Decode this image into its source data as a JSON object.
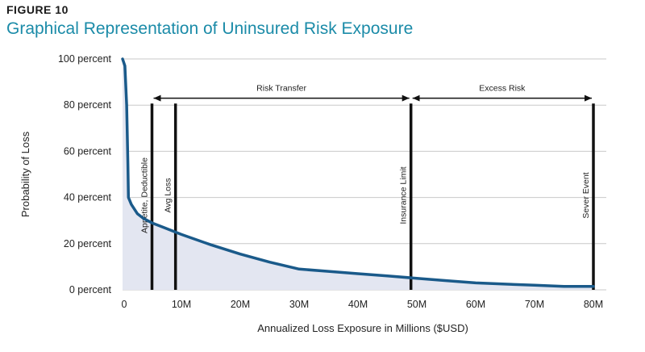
{
  "figure": {
    "label": "FIGURE 10",
    "title": "Graphical Representation of Uninsured Risk Exposure"
  },
  "colors": {
    "curve": "#1a5a8a",
    "fill": "#e3e6f1",
    "marker": "#111111",
    "title": "#1b8ba8"
  },
  "chart_data": {
    "type": "area",
    "xlabel": "Annualized Loss Exposure in Millions ($USD)",
    "ylabel": "Probability of Loss",
    "xlim": [
      0,
      80
    ],
    "ylim": [
      0,
      100
    ],
    "grid": true,
    "x_ticks": [
      {
        "value": 0,
        "label": "0"
      },
      {
        "value": 10,
        "label": "10M"
      },
      {
        "value": 20,
        "label": "20M"
      },
      {
        "value": 30,
        "label": "30M"
      },
      {
        "value": 40,
        "label": "40M"
      },
      {
        "value": 50,
        "label": "50M"
      },
      {
        "value": 60,
        "label": "60M"
      },
      {
        "value": 70,
        "label": "70M"
      },
      {
        "value": 80,
        "label": "80M"
      }
    ],
    "y_ticks": [
      {
        "value": 0,
        "label": "0 percent"
      },
      {
        "value": 20,
        "label": "20 percent"
      },
      {
        "value": 40,
        "label": "40 percent"
      },
      {
        "value": 60,
        "label": "60 percent"
      },
      {
        "value": 80,
        "label": "80 percent"
      },
      {
        "value": 100,
        "label": "100 percent"
      }
    ],
    "series": [
      {
        "x": [
          0,
          0.4,
          0.7,
          0.9,
          1.0,
          1.5,
          2.5,
          3.5,
          5,
          7,
          10,
          15,
          20,
          25,
          30,
          35,
          40,
          45,
          50,
          55,
          60,
          65,
          70,
          75,
          78,
          80
        ],
        "y": [
          100,
          97,
          80,
          55,
          40,
          37,
          33,
          31,
          29,
          27,
          24,
          19.5,
          15.5,
          12,
          9,
          8,
          7,
          6,
          5,
          4,
          3,
          2.5,
          2,
          1.5,
          1.5,
          1.5
        ]
      }
    ],
    "markers": [
      {
        "x": 5,
        "label": "Appetite, Deductible"
      },
      {
        "x": 9,
        "label": "Avg Loss"
      },
      {
        "x": 49,
        "label": "Insurance Limit"
      },
      {
        "x": 80,
        "label": "Sever Event"
      }
    ],
    "ranges": [
      {
        "from": 5,
        "to": 49,
        "label": "Risk Transfer",
        "y": 83
      },
      {
        "from": 49,
        "to": 80,
        "label": "Excess Risk",
        "y": 83
      }
    ]
  }
}
